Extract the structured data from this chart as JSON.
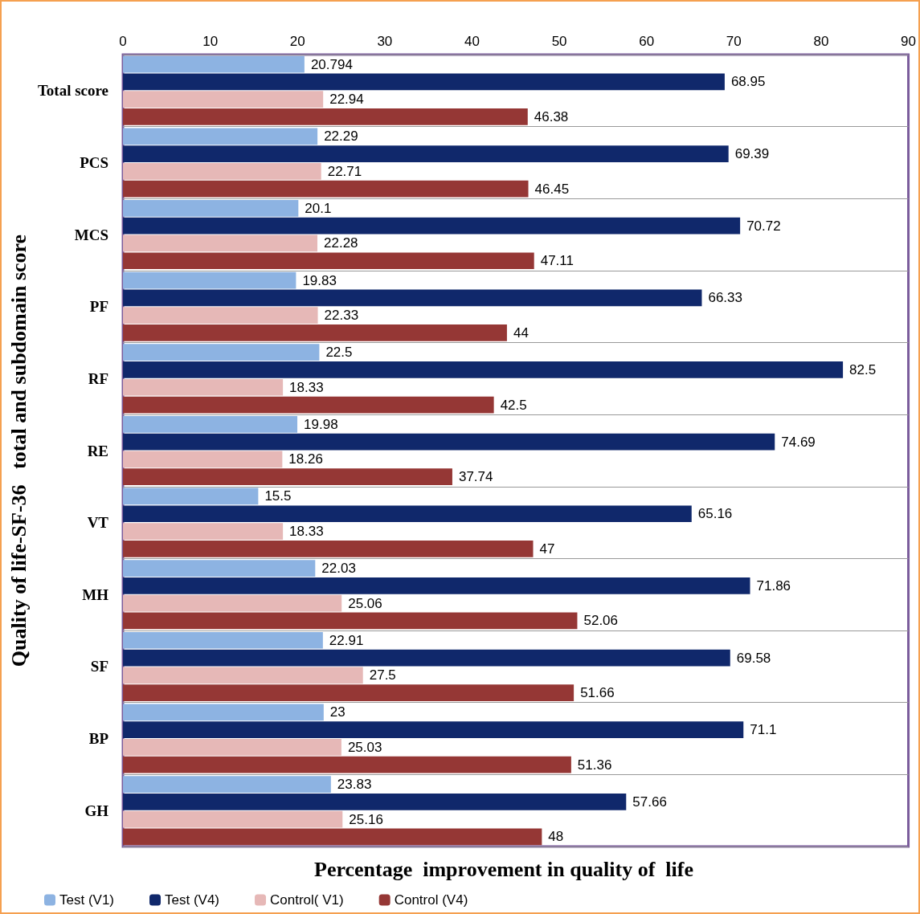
{
  "chart_data": {
    "type": "bar",
    "orientation": "horizontal",
    "xlabel": "Percentage  improvement in quality of  life",
    "ylabel": "Quality of life-SF-36   total and subdomain score",
    "categories": [
      "Total score",
      "PCS",
      "MCS",
      "PF",
      "RF",
      "RE",
      "VT",
      "MH",
      "SF",
      "BP",
      "GH"
    ],
    "series": [
      {
        "name": "Test (V1)",
        "color": "#8db3e2",
        "values": [
          20.794,
          22.29,
          20.1,
          19.83,
          22.5,
          19.98,
          15.5,
          22.03,
          22.91,
          23,
          23.83
        ]
      },
      {
        "name": "Test (V4)",
        "color": "#10286b",
        "values": [
          68.95,
          69.39,
          70.72,
          66.33,
          82.5,
          74.69,
          65.16,
          71.86,
          69.58,
          71.1,
          57.66
        ]
      },
      {
        "name": "Control( V1)",
        "color": "#e6b8b7",
        "values": [
          22.94,
          22.71,
          22.28,
          22.33,
          18.33,
          18.26,
          18.33,
          25.06,
          27.5,
          25.03,
          25.16
        ]
      },
      {
        "name": "Control (V4)",
        "color": "#953735",
        "values": [
          46.38,
          46.45,
          47.11,
          44,
          42.5,
          37.74,
          47,
          52.06,
          51.66,
          51.36,
          48
        ]
      }
    ],
    "xlim": [
      0,
      90
    ],
    "xticks": [
      0,
      10,
      20,
      30,
      40,
      50,
      60,
      70,
      80,
      90
    ],
    "grid": "y",
    "legend": "bottom left",
    "data_labels": true
  }
}
